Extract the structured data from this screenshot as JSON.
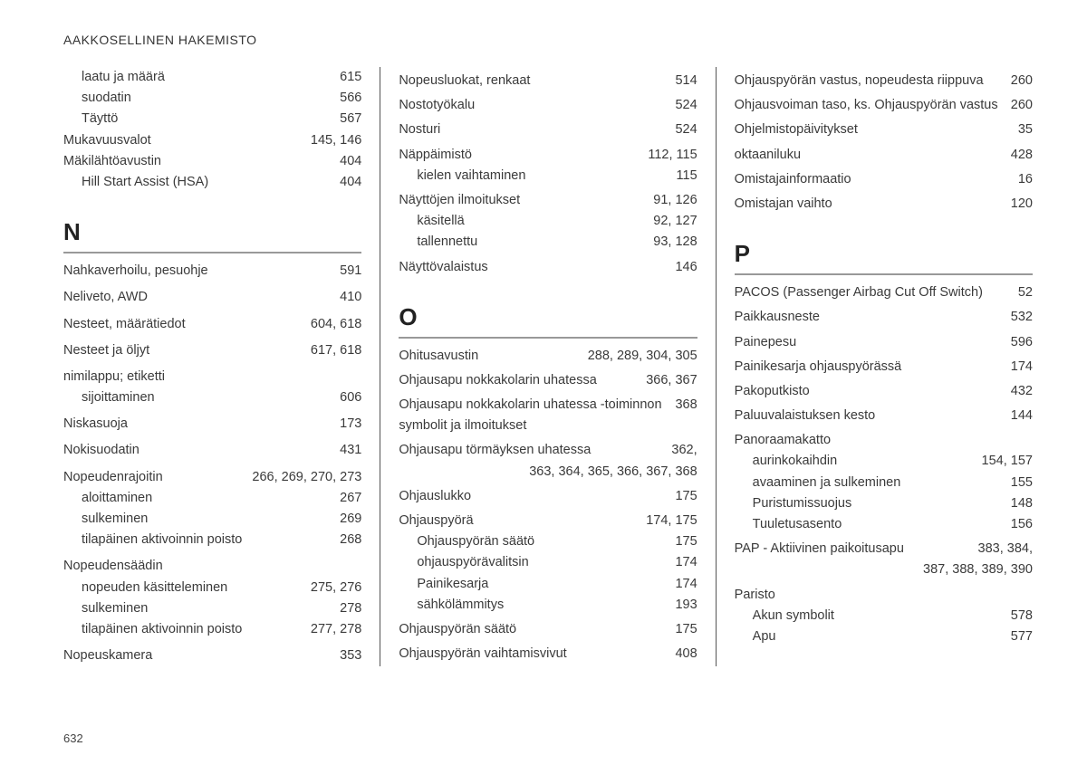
{
  "header": "AAKKOSELLINEN HAKEMISTO",
  "pageNumber": "632",
  "col1": {
    "pre": [
      {
        "term": "laatu ja määrä",
        "pages": "615",
        "sub": true
      },
      {
        "term": "suodatin",
        "pages": "566",
        "sub": true
      },
      {
        "term": "Täyttö",
        "pages": "567",
        "sub": true
      },
      {
        "term": "Mukavuusvalot",
        "pages": "145, 146"
      },
      {
        "term": "Mäkilähtöavustin",
        "pages": "404"
      },
      {
        "term": "Hill Start Assist (HSA)",
        "pages": "404",
        "sub": true
      }
    ],
    "letter": "N",
    "items": [
      {
        "term": "Nahkaverhoilu, pesuohje",
        "pages": "591"
      },
      {
        "term": "Neliveto, AWD",
        "pages": "410"
      },
      {
        "term": "Nesteet, määrätiedot",
        "pages": "604, 618"
      },
      {
        "term": "Nesteet ja öljyt",
        "pages": "617, 618"
      },
      {
        "term": "nimilappu; etiketti",
        "pages": ""
      },
      {
        "term": "sijoittaminen",
        "pages": "606",
        "sub": true
      },
      {
        "term": "Niskasuoja",
        "pages": "173"
      },
      {
        "term": "Nokisuodatin",
        "pages": "431"
      },
      {
        "term": "Nopeudenrajoitin",
        "pages": "266, 269, 270, 273"
      },
      {
        "term": "aloittaminen",
        "pages": "267",
        "sub": true
      },
      {
        "term": "sulkeminen",
        "pages": "269",
        "sub": true
      },
      {
        "term": "tilapäinen aktivoinnin poisto",
        "pages": "268",
        "sub": true
      },
      {
        "term": "Nopeudensäädin",
        "pages": ""
      },
      {
        "term": "nopeuden käsitteleminen",
        "pages": "275, 276",
        "sub": true
      },
      {
        "term": "sulkeminen",
        "pages": "278",
        "sub": true
      },
      {
        "term": "tilapäinen aktivoinnin poisto",
        "pages": "277, 278",
        "sub": true
      },
      {
        "term": "Nopeuskamera",
        "pages": "353"
      }
    ]
  },
  "col2": {
    "pre": [
      {
        "term": "Nopeusluokat, renkaat",
        "pages": "514"
      },
      {
        "term": "Nostotyökalu",
        "pages": "524"
      },
      {
        "term": "Nosturi",
        "pages": "524"
      },
      {
        "term": "Näppäimistö",
        "pages": "112, 115"
      },
      {
        "term": "kielen vaihtaminen",
        "pages": "115",
        "sub": true
      },
      {
        "term": "Näyttöjen ilmoitukset",
        "pages": "91, 126"
      },
      {
        "term": "käsitellä",
        "pages": "92, 127",
        "sub": true
      },
      {
        "term": "tallennettu",
        "pages": "93, 128",
        "sub": true
      },
      {
        "term": "Näyttövalaistus",
        "pages": "146"
      }
    ],
    "letter": "O",
    "items": [
      {
        "term": "Ohitusavustin",
        "pages": "288, 289, 304, 305"
      },
      {
        "term": "Ohjausapu nokkakolarin uhatessa",
        "pages": "366, 367"
      },
      {
        "term": "Ohjausapu nokkakolarin uhatessa -toiminnon symbolit ja ilmoitukset",
        "pages": "368"
      },
      {
        "term": "Ohjausapu törmäyksen uhatessa",
        "pages": "362,",
        "cont": "363, 364, 365, 366, 367, 368"
      },
      {
        "term": "Ohjauslukko",
        "pages": "175"
      },
      {
        "term": "Ohjauspyörä",
        "pages": "174, 175"
      },
      {
        "term": "Ohjauspyörän säätö",
        "pages": "175",
        "sub": true
      },
      {
        "term": "ohjauspyörävalitsin",
        "pages": "174",
        "sub": true
      },
      {
        "term": "Painikesarja",
        "pages": "174",
        "sub": true
      },
      {
        "term": "sähkölämmitys",
        "pages": "193",
        "sub": true
      },
      {
        "term": "Ohjauspyörän säätö",
        "pages": "175"
      },
      {
        "term": "Ohjauspyörän vaihtamisvivut",
        "pages": "408"
      }
    ]
  },
  "col3": {
    "pre": [
      {
        "term": "Ohjauspyörän vastus, nopeudesta riippuva",
        "pages": "260"
      },
      {
        "term": "Ohjausvoiman taso, ks. Ohjauspyörän vastus",
        "pages": "260"
      },
      {
        "term": "Ohjelmistopäivitykset",
        "pages": "35"
      },
      {
        "term": "oktaaniluku",
        "pages": "428"
      },
      {
        "term": "Omistajainformaatio",
        "pages": "16"
      },
      {
        "term": "Omistajan vaihto",
        "pages": "120"
      }
    ],
    "letter": "P",
    "items": [
      {
        "term": "PACOS (Passenger Airbag Cut Off Switch)",
        "pages": "52"
      },
      {
        "term": "Paikkausneste",
        "pages": "532"
      },
      {
        "term": "Painepesu",
        "pages": "596"
      },
      {
        "term": "Painikesarja ohjauspyörässä",
        "pages": "174"
      },
      {
        "term": "Pakoputkisto",
        "pages": "432"
      },
      {
        "term": "Paluuvalaistuksen kesto",
        "pages": "144"
      },
      {
        "term": "Panoraamakatto",
        "pages": ""
      },
      {
        "term": "aurinkokaihdin",
        "pages": "154, 157",
        "sub": true
      },
      {
        "term": "avaaminen ja sulkeminen",
        "pages": "155",
        "sub": true
      },
      {
        "term": "Puristumissuojus",
        "pages": "148",
        "sub": true
      },
      {
        "term": "Tuuletusasento",
        "pages": "156",
        "sub": true
      },
      {
        "term": "PAP - Aktiivinen paikoitusapu",
        "pages": "383, 384,",
        "cont": "387, 388, 389, 390"
      },
      {
        "term": "Paristo",
        "pages": ""
      },
      {
        "term": "Akun symbolit",
        "pages": "578",
        "sub": true
      },
      {
        "term": "Apu",
        "pages": "577",
        "sub": true
      }
    ]
  }
}
